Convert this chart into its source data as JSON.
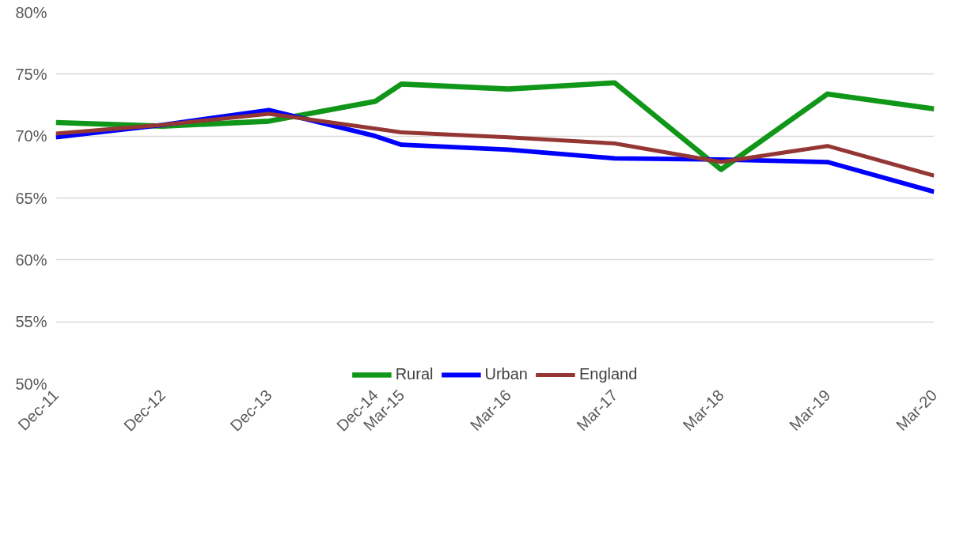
{
  "chart_data": {
    "type": "line",
    "x": [
      "2011-12",
      "2012-12",
      "2013-12",
      "2014-12",
      "2015-03",
      "2016-03",
      "2017-03",
      "2018-03",
      "2019-03",
      "2020-03"
    ],
    "series": [
      {
        "name": "Rural",
        "color": "#109618",
        "values": [
          71.1,
          70.8,
          71.2,
          72.8,
          74.2,
          73.8,
          74.3,
          67.3,
          73.4,
          72.2
        ]
      },
      {
        "name": "Urban",
        "color": "#0000ff",
        "values": [
          69.9,
          70.9,
          72.1,
          70.0,
          69.3,
          68.9,
          68.2,
          68.1,
          67.9,
          65.5
        ]
      },
      {
        "name": "England",
        "color": "#943634",
        "values": [
          70.2,
          70.9,
          71.8,
          70.6,
          70.3,
          69.9,
          69.4,
          67.9,
          69.2,
          66.8
        ]
      }
    ],
    "xlim": [
      "2011-12",
      "2020-03"
    ],
    "xticks": [
      {
        "value": "2011-12",
        "label": "Dec-11"
      },
      {
        "value": "2012-12",
        "label": "Dec-12"
      },
      {
        "value": "2013-12",
        "label": "Dec-13"
      },
      {
        "value": "2014-12",
        "label": "Dec-14"
      },
      {
        "value": "2015-03",
        "label": "Mar-15"
      },
      {
        "value": "2016-03",
        "label": "Mar-16"
      },
      {
        "value": "2017-03",
        "label": "Mar-17"
      },
      {
        "value": "2018-03",
        "label": "Mar-18"
      },
      {
        "value": "2019-03",
        "label": "Mar-19"
      },
      {
        "value": "2020-03",
        "label": "Mar-20"
      }
    ],
    "ylim": [
      50,
      80
    ],
    "yticks": [
      {
        "value": 50,
        "label": "50%"
      },
      {
        "value": 55,
        "label": "55%"
      },
      {
        "value": 60,
        "label": "60%"
      },
      {
        "value": 65,
        "label": "65%"
      },
      {
        "value": 70,
        "label": "70%"
      },
      {
        "value": 75,
        "label": "75%"
      },
      {
        "value": 80,
        "label": "80%"
      }
    ],
    "grid": "y",
    "legend": "bottom",
    "marker": "none",
    "line_style": "solid"
  }
}
